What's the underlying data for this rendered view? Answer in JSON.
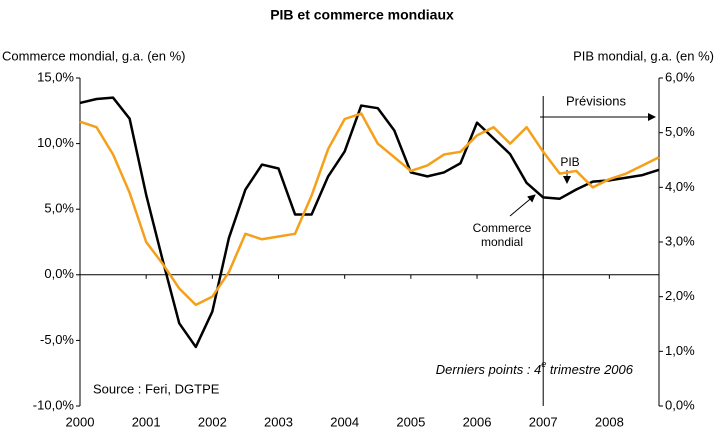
{
  "chart_data": {
    "type": "line",
    "title": "PIB et commerce mondiaux",
    "y_label": "Commerce mondial, g.a. (en %)",
    "y2_label": "PIB mondial, g.a. (en %)",
    "annotations": {
      "forecast": "Prévisions",
      "forecast_start": 2007,
      "pib": "PIB",
      "commerce": [
        "Commerce",
        "mondial"
      ],
      "source": "Source : Feri, DGTPE",
      "last_points": [
        "Derniers points : 4",
        "e",
        " trimestre 2006"
      ]
    },
    "x": [
      2000,
      2000.25,
      2000.5,
      2000.75,
      2001,
      2001.25,
      2001.5,
      2001.75,
      2002,
      2002.25,
      2002.5,
      2002.75,
      2003,
      2003.25,
      2003.5,
      2003.75,
      2004,
      2004.25,
      2004.5,
      2004.75,
      2005,
      2005.25,
      2005.5,
      2005.75,
      2006,
      2006.25,
      2006.5,
      2006.75,
      2007,
      2007.25,
      2007.5,
      2007.75,
      2008,
      2008.25,
      2008.5,
      2008.75
    ],
    "series": [
      {
        "name": "Commerce mondial",
        "color": "#000000",
        "axis": "y",
        "values": [
          13.1,
          13.4,
          13.5,
          11.9,
          6.1,
          1.1,
          -3.7,
          -5.5,
          -2.8,
          2.8,
          6.5,
          8.4,
          8.1,
          4.6,
          4.6,
          7.5,
          9.4,
          12.9,
          12.7,
          11.0,
          7.8,
          7.5,
          7.8,
          8.5,
          11.6,
          10.4,
          9.2,
          7.0,
          5.9,
          5.8,
          6.5,
          7.1,
          7.2,
          7.4,
          7.6,
          8.0
        ]
      },
      {
        "name": "PIB",
        "color": "#f5a01a",
        "axis": "y2",
        "values": [
          5.2,
          5.1,
          4.6,
          3.9,
          3.0,
          2.6,
          2.15,
          1.85,
          2.0,
          2.45,
          3.15,
          3.05,
          3.1,
          3.15,
          3.85,
          4.7,
          5.25,
          5.35,
          4.8,
          4.55,
          4.3,
          4.4,
          4.6,
          4.65,
          4.95,
          5.1,
          4.8,
          5.1,
          4.65,
          4.25,
          4.3,
          4.0,
          4.15,
          4.25,
          4.4,
          4.55
        ]
      }
    ],
    "xlim": [
      2000,
      2008.75
    ],
    "xticks": [
      2000,
      2001,
      2002,
      2003,
      2004,
      2005,
      2006,
      2007,
      2008
    ],
    "ylim": [
      -10,
      15
    ],
    "yticks": [
      {
        "value": -10,
        "label": "-10,0%"
      },
      {
        "value": -5,
        "label": "-5,0%"
      },
      {
        "value": 0,
        "label": "0,0%"
      },
      {
        "value": 5,
        "label": "5,0%"
      },
      {
        "value": 10,
        "label": "10,0%"
      },
      {
        "value": 15,
        "label": "15,0%"
      }
    ],
    "y2lim": [
      0,
      6
    ],
    "y2ticks": [
      {
        "value": 0,
        "label": "0,0%"
      },
      {
        "value": 1,
        "label": "1,0%"
      },
      {
        "value": 2,
        "label": "2,0%"
      },
      {
        "value": 3,
        "label": "3,0%"
      },
      {
        "value": 4,
        "label": "4,0%"
      },
      {
        "value": 5,
        "label": "5,0%"
      },
      {
        "value": 6,
        "label": "6,0%"
      }
    ],
    "grid": false
  }
}
